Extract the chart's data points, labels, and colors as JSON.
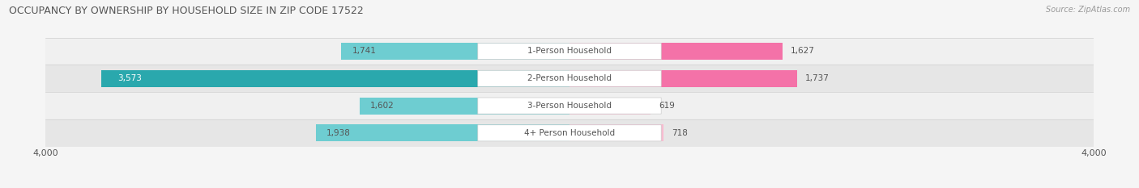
{
  "title": "OCCUPANCY BY OWNERSHIP BY HOUSEHOLD SIZE IN ZIP CODE 17522",
  "source": "Source: ZipAtlas.com",
  "categories": [
    "1-Person Household",
    "2-Person Household",
    "3-Person Household",
    "4+ Person Household"
  ],
  "owner_values": [
    1741,
    3573,
    1602,
    1938
  ],
  "renter_values": [
    1627,
    1737,
    619,
    718
  ],
  "owner_colors": [
    "#6ecdd1",
    "#2aa8ad",
    "#6ecdd1",
    "#6ecdd1"
  ],
  "renter_colors": [
    "#f472a8",
    "#f472a8",
    "#f8bbd0",
    "#f8bbd0"
  ],
  "axis_max": 4000,
  "bg_color": "#f5f5f5",
  "row_colors": [
    "#f0f0f0",
    "#e6e6e6",
    "#f0f0f0",
    "#e6e6e6"
  ],
  "title_color": "#555555",
  "source_color": "#999999",
  "value_color_default": "#555555",
  "value_color_white": "#ffffff",
  "pill_color": "#ffffff",
  "pill_edge_color": "#cccccc",
  "label_color": "#555555",
  "axis_tick_color": "#555555",
  "separator_color": "#d0d0d0"
}
